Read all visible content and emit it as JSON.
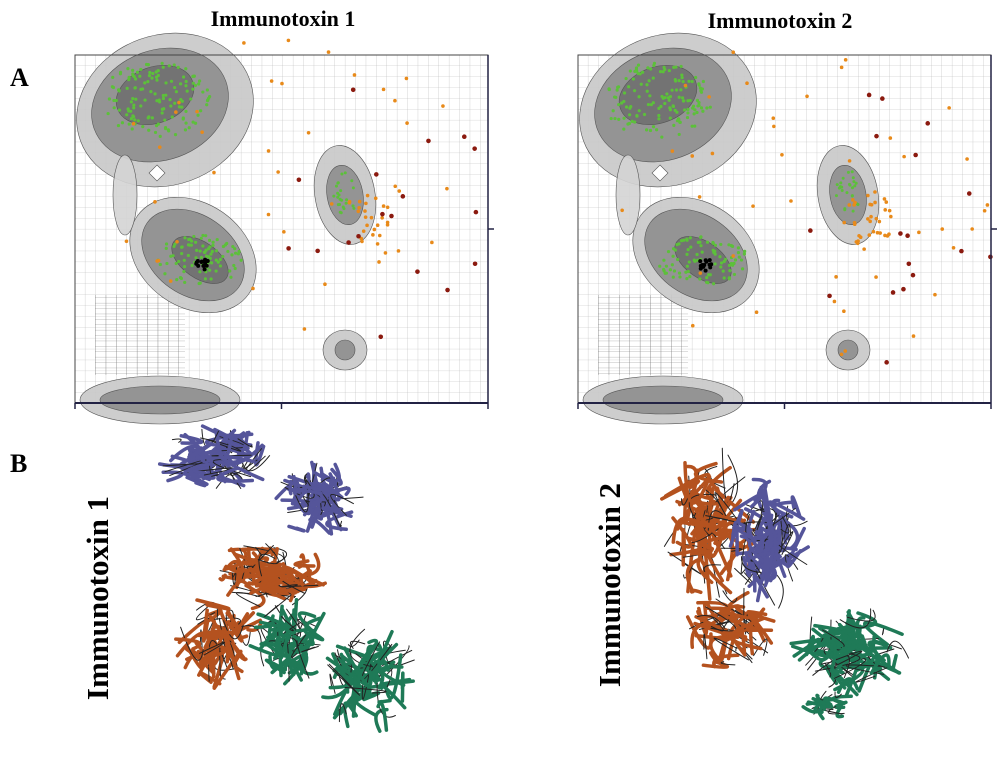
{
  "panel_a": {
    "label": "A",
    "titles": [
      "Immunotoxin 1",
      "Immunotoxin 2"
    ]
  },
  "panel_b": {
    "label": "B",
    "labels": [
      "Immunotoxin 1",
      "Immunotoxin 2"
    ]
  }
}
